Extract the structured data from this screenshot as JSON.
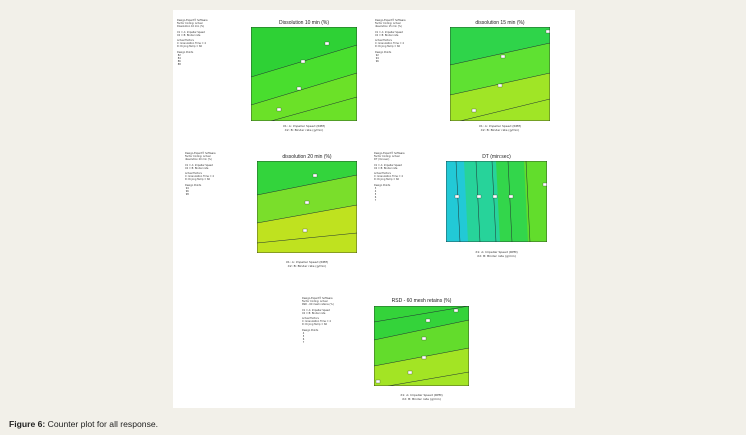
{
  "figure": {
    "caption_label": "Figure 6:",
    "caption_text": " Counter plot for all response.",
    "panels": [
      {
        "title": "Dissolution 10 min (%)",
        "x_label": "X1: A: Impeller Speed (RPM)",
        "y_label": "X2: B: Binder rate (g/min)",
        "bands": [
          "#2ed135",
          "#49de2e",
          "#6be128"
        ],
        "line_labels": [
          "88",
          "86",
          "84",
          "82"
        ]
      },
      {
        "title": "dissolution 15 min (%)",
        "x_label": "X1: A: Impeller Speed (RPM)",
        "y_label": "X2: B: Binder rate (g/min)",
        "bands": [
          "#2fd44a",
          "#5fe132",
          "#a0e526"
        ],
        "line_labels": [
          "96",
          "94",
          "92"
        ]
      },
      {
        "title": "dissolution 20 min (%)",
        "x_label": "X1: A: Impeller Speed (RPM)",
        "y_label": "X2: B: Binder rate (g/min)",
        "bands": [
          "#33d43c",
          "#7ade2b",
          "#bfe21f"
        ],
        "line_labels": [
          "98",
          "96",
          "94"
        ]
      },
      {
        "title": "DT (min:sec)",
        "x_label": "X1: A: Impeller Speed (RPM)",
        "y_label": "X2: B: Binder rate (g/min)",
        "bands": [
          "#22c9d6",
          "#27d39a",
          "#33d64b",
          "#62dd2c"
        ],
        "line_labels": [
          "3",
          "4",
          "5",
          "6",
          "7"
        ]
      },
      {
        "title": "RSD - 60 mesh retains (%)",
        "x_label": "X1: A: Impeller Speed (RPM)",
        "y_label": "X2: B: Binder rate (g/min)",
        "bands": [
          "#34d33a",
          "#63dc2c",
          "#a3e424"
        ],
        "line_labels": [
          "4",
          "5",
          "6",
          "7"
        ]
      }
    ]
  }
}
